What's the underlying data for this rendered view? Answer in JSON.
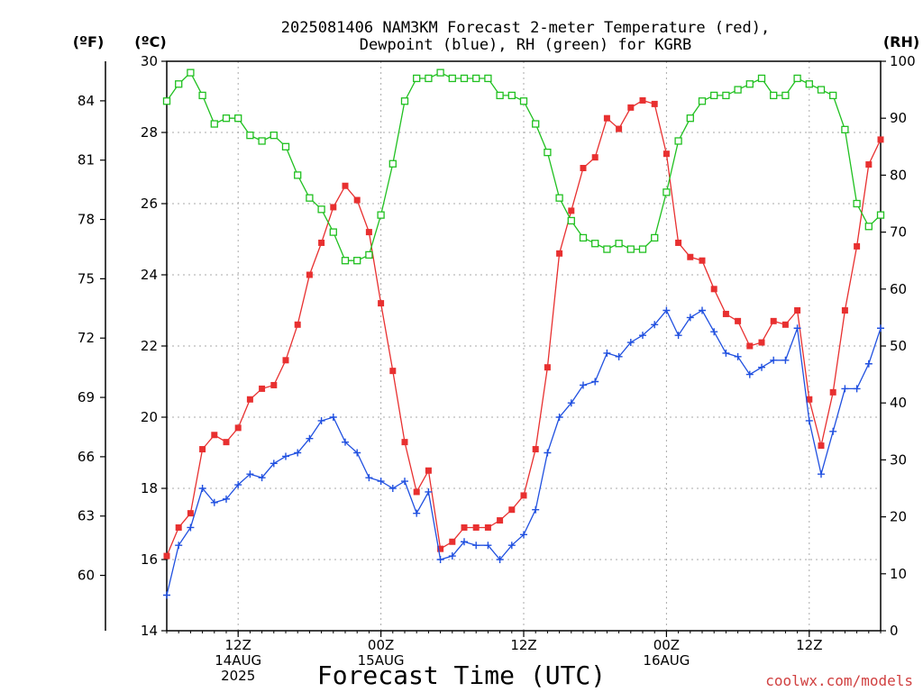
{
  "title_line1": "2025081406 NAM3KM Forecast 2-meter Temperature (red),",
  "title_line2": "Dewpoint (blue), RH (green) for KGRB",
  "unit_f": "(ºF)",
  "unit_c": "(ºC)",
  "unit_rh": "(RH)",
  "xlabel": "Forecast Time (UTC)",
  "credit": "coolwx.com/models",
  "chart_data": {
    "type": "line",
    "title": "2025081406 NAM3KM Forecast 2-meter Temperature (red), Dewpoint (blue), RH (green) for KGRB",
    "xlabel": "Forecast Time (UTC)",
    "x_unit": "forecast hour from 2025-08-14 06Z",
    "x": [
      0,
      1,
      2,
      3,
      4,
      5,
      6,
      7,
      8,
      9,
      10,
      11,
      12,
      13,
      14,
      15,
      16,
      17,
      18,
      19,
      20,
      21,
      22,
      23,
      24,
      25,
      26,
      27,
      28,
      29,
      30,
      31,
      32,
      33,
      34,
      35,
      36,
      37,
      38,
      39,
      40,
      41,
      42,
      43,
      44,
      45,
      46,
      47,
      48,
      49,
      50,
      51,
      52,
      53,
      54,
      55,
      56,
      57,
      58,
      59,
      60
    ],
    "xlim": [
      0,
      60
    ],
    "x_ticks": [
      {
        "x": 6,
        "lines": [
          "12Z",
          "14AUG",
          "2025"
        ]
      },
      {
        "x": 18,
        "lines": [
          "00Z",
          "15AUG"
        ]
      },
      {
        "x": 30,
        "lines": [
          "12Z"
        ]
      },
      {
        "x": 42,
        "lines": [
          "00Z",
          "16AUG"
        ]
      },
      {
        "x": 54,
        "lines": [
          "12Z"
        ]
      }
    ],
    "ylim_c": [
      14,
      30
    ],
    "y_ticks_c": [
      14,
      16,
      18,
      20,
      22,
      24,
      26,
      28,
      30
    ],
    "y_ticks_f": [
      60,
      63,
      66,
      69,
      72,
      75,
      78,
      81,
      84
    ],
    "ylim_rh": [
      0,
      100
    ],
    "y_ticks_rh": [
      0,
      10,
      20,
      30,
      40,
      50,
      60,
      70,
      80,
      90,
      100
    ],
    "grid": true,
    "series": [
      {
        "name": "Temperature",
        "color": "#e83030",
        "marker": "filled-square",
        "axis": "c",
        "values": [
          16.1,
          16.9,
          17.3,
          19.1,
          19.5,
          19.3,
          19.7,
          20.5,
          20.8,
          20.9,
          21.6,
          22.6,
          24.0,
          24.9,
          25.9,
          26.5,
          26.1,
          25.2,
          23.2,
          21.3,
          19.3,
          17.9,
          18.5,
          16.3,
          16.5,
          16.9,
          16.9,
          16.9,
          17.1,
          17.4,
          17.8,
          19.1,
          21.4,
          24.6,
          25.8,
          27.0,
          27.3,
          28.4,
          28.1,
          28.7,
          28.9,
          28.8,
          27.4,
          24.9,
          24.5,
          24.4,
          23.6,
          22.9,
          22.7,
          22.0,
          22.1,
          22.7,
          22.6,
          23.0,
          20.5,
          19.2,
          20.7,
          23.0,
          24.8,
          27.1,
          27.8
        ]
      },
      {
        "name": "Dewpoint",
        "color": "#2050e0",
        "marker": "plus",
        "axis": "c",
        "values": [
          15.0,
          16.4,
          16.9,
          18.0,
          17.6,
          17.7,
          18.1,
          18.4,
          18.3,
          18.7,
          18.9,
          19.0,
          19.4,
          19.9,
          20.0,
          19.3,
          19.0,
          18.3,
          18.2,
          18.0,
          18.2,
          17.3,
          17.9,
          16.0,
          16.1,
          16.5,
          16.4,
          16.4,
          16.0,
          16.4,
          16.7,
          17.4,
          19.0,
          20.0,
          20.4,
          20.9,
          21.0,
          21.8,
          21.7,
          22.1,
          22.3,
          22.6,
          23.0,
          22.3,
          22.8,
          23.0,
          22.4,
          21.8,
          21.7,
          21.2,
          21.4,
          21.6,
          21.6,
          22.5,
          19.9,
          18.4,
          19.6,
          20.8,
          20.8,
          21.5,
          22.5
        ]
      },
      {
        "name": "RH",
        "color": "#20c020",
        "marker": "open-square",
        "axis": "rh",
        "values": [
          93,
          96,
          98,
          94,
          89,
          90,
          90,
          87,
          86,
          87,
          85,
          80,
          76,
          74,
          70,
          65,
          65,
          66,
          73,
          82,
          93,
          97,
          97,
          98,
          97,
          97,
          97,
          97,
          94,
          94,
          93,
          89,
          84,
          76,
          72,
          69,
          68,
          67,
          68,
          67,
          67,
          69,
          77,
          86,
          90,
          93,
          94,
          94,
          95,
          96,
          97,
          94,
          94,
          97,
          96,
          95,
          94,
          88,
          75,
          71,
          73
        ]
      }
    ]
  }
}
